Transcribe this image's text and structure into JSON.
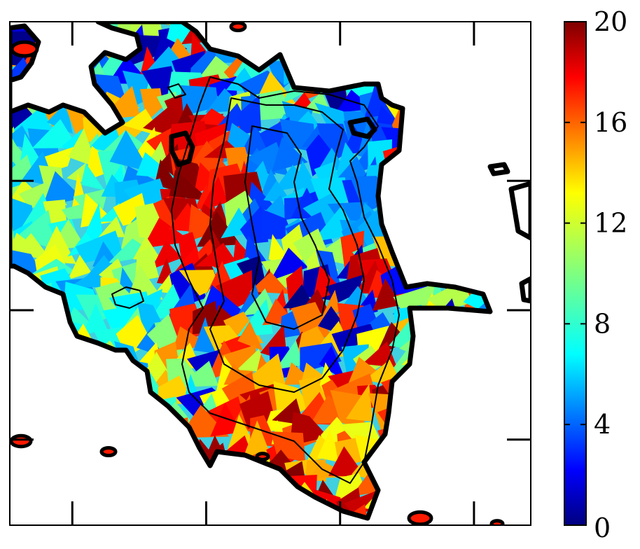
{
  "chart_data": {
    "type": "heatmap",
    "title": "",
    "xlabel": "",
    "ylabel": "",
    "colormap": "jet",
    "colorbar": {
      "range": [
        0,
        20
      ],
      "tick_labels": [
        "0",
        "4",
        "8",
        "12",
        "16",
        "20"
      ],
      "ticks": [
        0,
        4,
        8,
        12,
        16,
        20
      ],
      "colors": [
        "#00007f",
        "#0000ff",
        "#007fff",
        "#00ffff",
        "#7fff7f",
        "#ffff00",
        "#ff7f00",
        "#ff0000",
        "#7f0000"
      ]
    },
    "axes": {
      "tick_labels_shown": false,
      "x_tick_count": 4,
      "y_tick_count": 3
    },
    "map": {
      "masked_region_color": "#ffffff",
      "outer_contour_color": "#000000",
      "inner_contours": 3
    }
  }
}
